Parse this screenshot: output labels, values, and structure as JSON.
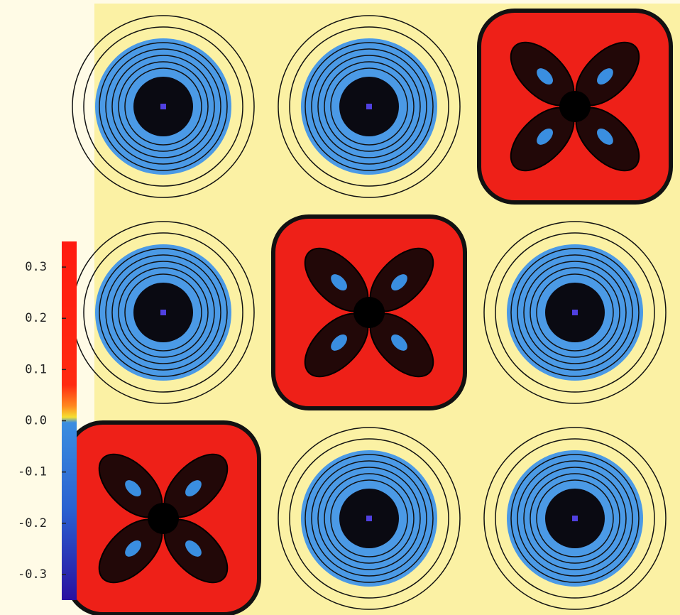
{
  "chart_data": {
    "type": "contour",
    "zlim": [
      -0.35,
      0.35
    ],
    "zticks": [
      0.3,
      0.2,
      0.1,
      {
        "value": 0,
        "label": "0.0"
      },
      -0.1,
      -0.2,
      -0.3
    ]
  }
}
